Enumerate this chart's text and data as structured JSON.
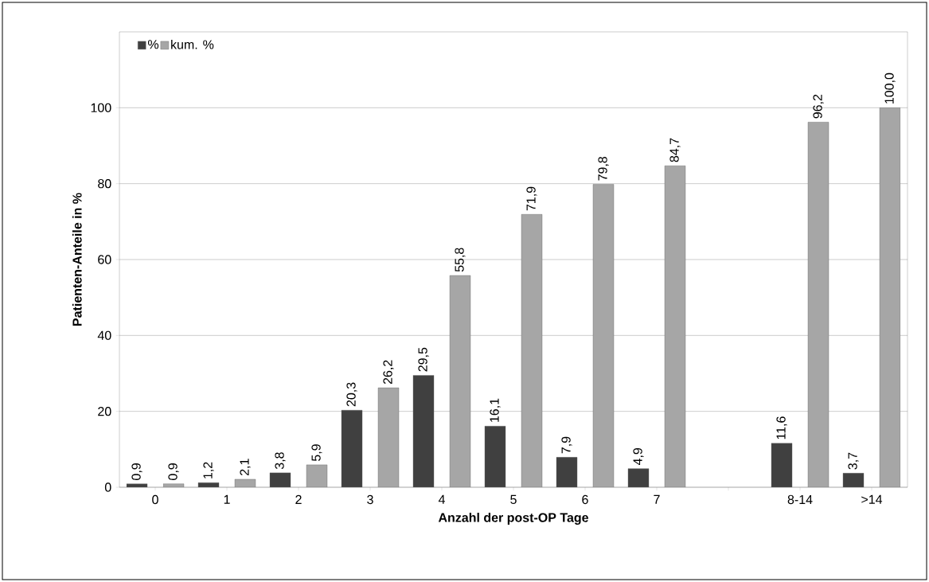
{
  "chart_data": {
    "type": "bar",
    "xlabel": "Anzahl der post-OP Tage",
    "ylabel": "Patienten-Anteile in %",
    "categories": [
      "0",
      "1",
      "2",
      "3",
      "4",
      "5",
      "6",
      "7",
      null,
      "8-14",
      ">14"
    ],
    "series": [
      {
        "name": "%",
        "color": "#404040",
        "values": [
          0.9,
          1.2,
          3.8,
          20.3,
          29.5,
          16.1,
          7.9,
          4.9,
          null,
          11.6,
          3.7
        ],
        "value_labels": [
          "0,9",
          "1,2",
          "3,8",
          "20,3",
          "29,5",
          "16,1",
          "7,9",
          "4,9",
          null,
          "11,6",
          "3,7"
        ]
      },
      {
        "name": "kum. %",
        "color": "#a6a6a6",
        "values": [
          0.9,
          2.1,
          5.9,
          26.2,
          55.8,
          71.9,
          79.8,
          84.7,
          null,
          96.2,
          100.0
        ],
        "value_labels": [
          "0,9",
          "2,1",
          "5,9",
          "26,2",
          "55,8",
          "71,9",
          "79,8",
          "84,7",
          null,
          "96,2",
          "100,0"
        ]
      }
    ],
    "ylim": [
      0,
      120
    ],
    "yticks": [
      0,
      20,
      40,
      60,
      80,
      100
    ],
    "grid": "y",
    "legend": "top left"
  }
}
